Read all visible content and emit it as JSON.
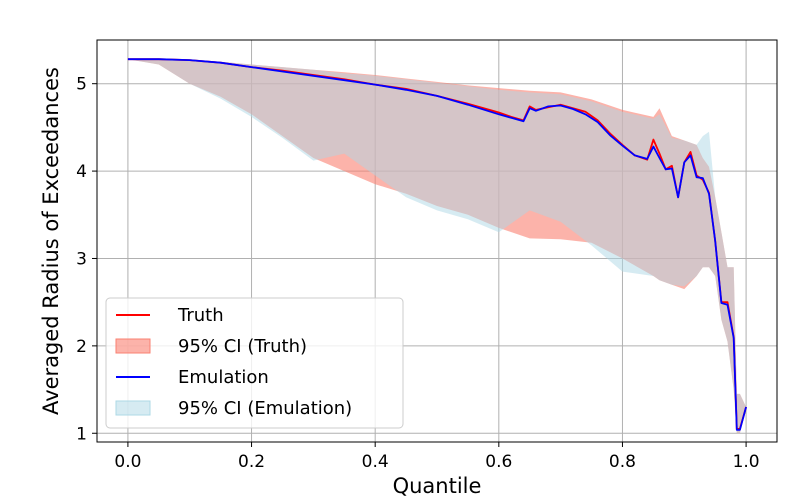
{
  "chart_data": {
    "type": "line",
    "title": "",
    "xlabel": "Quantile",
    "ylabel": "Averaged Radius of Exceedances",
    "xlim": [
      -0.05,
      1.05
    ],
    "ylim": [
      0.9,
      5.5
    ],
    "xticks": [
      0.0,
      0.2,
      0.4,
      0.6,
      0.8,
      1.0
    ],
    "xtick_labels": [
      "0.0",
      "0.2",
      "0.4",
      "0.6",
      "0.8",
      "1.0"
    ],
    "yticks": [
      1,
      2,
      3,
      4,
      5
    ],
    "ytick_labels": [
      "1",
      "2",
      "3",
      "4",
      "5"
    ],
    "grid": true,
    "legend_position": "lower-left",
    "colors": {
      "truth": "#ff0000",
      "truth_ci": "#fa8072",
      "emulation": "#0000ff",
      "emulation_ci": "#add8e6",
      "grid": "#b0b0b0"
    },
    "legend": [
      {
        "label": "Truth",
        "kind": "line",
        "color": "#ff0000"
      },
      {
        "label": "95% CI (Truth)",
        "kind": "patch",
        "color": "#fa8072"
      },
      {
        "label": "Emulation",
        "kind": "line",
        "color": "#0000ff"
      },
      {
        "label": "95% CI (Emulation)",
        "kind": "patch",
        "color": "#add8e6"
      }
    ],
    "series": [
      {
        "name": "Truth",
        "x": [
          0.0,
          0.05,
          0.1,
          0.15,
          0.2,
          0.25,
          0.3,
          0.35,
          0.4,
          0.45,
          0.5,
          0.55,
          0.6,
          0.62,
          0.64,
          0.65,
          0.66,
          0.68,
          0.7,
          0.72,
          0.74,
          0.76,
          0.78,
          0.8,
          0.82,
          0.84,
          0.85,
          0.86,
          0.87,
          0.88,
          0.89,
          0.9,
          0.91,
          0.92,
          0.93,
          0.94,
          0.95,
          0.96,
          0.97,
          0.98,
          0.985,
          0.99,
          1.0
        ],
        "y": [
          5.28,
          5.28,
          5.27,
          5.24,
          5.19,
          5.15,
          5.1,
          5.05,
          4.99,
          4.94,
          4.86,
          4.77,
          4.67,
          4.62,
          4.58,
          4.74,
          4.7,
          4.73,
          4.76,
          4.72,
          4.68,
          4.58,
          4.43,
          4.3,
          4.18,
          4.13,
          4.36,
          4.2,
          4.02,
          4.06,
          3.7,
          4.1,
          4.22,
          3.95,
          3.9,
          3.75,
          3.2,
          2.5,
          2.5,
          2.1,
          1.05,
          1.05,
          1.3
        ]
      },
      {
        "name": "Emulation",
        "x": [
          0.0,
          0.05,
          0.1,
          0.15,
          0.2,
          0.25,
          0.3,
          0.35,
          0.4,
          0.45,
          0.5,
          0.55,
          0.6,
          0.62,
          0.64,
          0.65,
          0.66,
          0.68,
          0.7,
          0.72,
          0.74,
          0.76,
          0.78,
          0.8,
          0.82,
          0.84,
          0.85,
          0.86,
          0.87,
          0.88,
          0.89,
          0.9,
          0.91,
          0.92,
          0.93,
          0.94,
          0.95,
          0.96,
          0.97,
          0.98,
          0.985,
          0.99,
          1.0
        ],
        "y": [
          5.28,
          5.28,
          5.27,
          5.24,
          5.19,
          5.14,
          5.09,
          5.04,
          4.99,
          4.93,
          4.86,
          4.76,
          4.65,
          4.61,
          4.57,
          4.72,
          4.69,
          4.74,
          4.75,
          4.71,
          4.65,
          4.56,
          4.41,
          4.29,
          4.18,
          4.14,
          4.28,
          4.15,
          4.02,
          4.03,
          3.7,
          4.1,
          4.18,
          3.93,
          3.92,
          3.74,
          3.2,
          2.49,
          2.47,
          2.09,
          1.04,
          1.04,
          1.3
        ]
      },
      {
        "name": "95% CI (Truth)",
        "x": [
          0.0,
          0.05,
          0.1,
          0.15,
          0.2,
          0.25,
          0.3,
          0.35,
          0.4,
          0.45,
          0.5,
          0.55,
          0.6,
          0.65,
          0.7,
          0.75,
          0.8,
          0.85,
          0.86,
          0.88,
          0.9,
          0.92,
          0.93,
          0.94,
          0.95,
          0.96,
          0.97,
          0.98,
          0.985,
          0.99,
          1.0
        ],
        "upper": [
          5.28,
          5.28,
          5.27,
          5.25,
          5.22,
          5.19,
          5.16,
          5.13,
          5.1,
          5.06,
          5.02,
          4.98,
          4.95,
          4.92,
          4.9,
          4.82,
          4.7,
          4.62,
          4.72,
          4.4,
          4.35,
          4.3,
          4.15,
          4.05,
          3.7,
          3.3,
          2.9,
          2.9,
          1.45,
          1.45,
          1.3
        ],
        "lower": [
          5.28,
          5.22,
          5.0,
          4.85,
          4.65,
          4.4,
          4.15,
          4.0,
          3.85,
          3.74,
          3.6,
          3.5,
          3.35,
          3.23,
          3.22,
          3.18,
          3.0,
          2.8,
          2.75,
          2.7,
          2.65,
          2.8,
          2.9,
          2.9,
          2.8,
          2.3,
          2.05,
          1.5,
          1.0,
          1.0,
          1.3
        ]
      },
      {
        "name": "95% CI (Emulation)",
        "x": [
          0.0,
          0.05,
          0.1,
          0.15,
          0.2,
          0.25,
          0.3,
          0.35,
          0.4,
          0.45,
          0.5,
          0.55,
          0.6,
          0.65,
          0.7,
          0.75,
          0.8,
          0.85,
          0.86,
          0.88,
          0.9,
          0.92,
          0.93,
          0.94,
          0.95,
          0.96,
          0.97,
          0.98,
          0.985,
          0.99,
          1.0
        ],
        "upper": [
          5.28,
          5.28,
          5.27,
          5.25,
          5.22,
          5.19,
          5.16,
          5.12,
          5.09,
          5.05,
          5.01,
          4.97,
          4.93,
          4.9,
          4.88,
          4.8,
          4.68,
          4.6,
          4.65,
          4.38,
          4.35,
          4.3,
          4.4,
          4.45,
          3.7,
          3.3,
          2.9,
          2.9,
          1.45,
          1.45,
          1.3
        ],
        "lower": [
          5.28,
          5.22,
          5.0,
          4.83,
          4.62,
          4.38,
          4.12,
          4.2,
          3.95,
          3.7,
          3.55,
          3.45,
          3.3,
          3.55,
          3.42,
          3.15,
          2.85,
          2.8,
          2.75,
          2.7,
          2.68,
          2.8,
          2.9,
          2.9,
          2.8,
          2.3,
          2.05,
          1.5,
          1.0,
          1.0,
          1.3
        ]
      }
    ]
  }
}
